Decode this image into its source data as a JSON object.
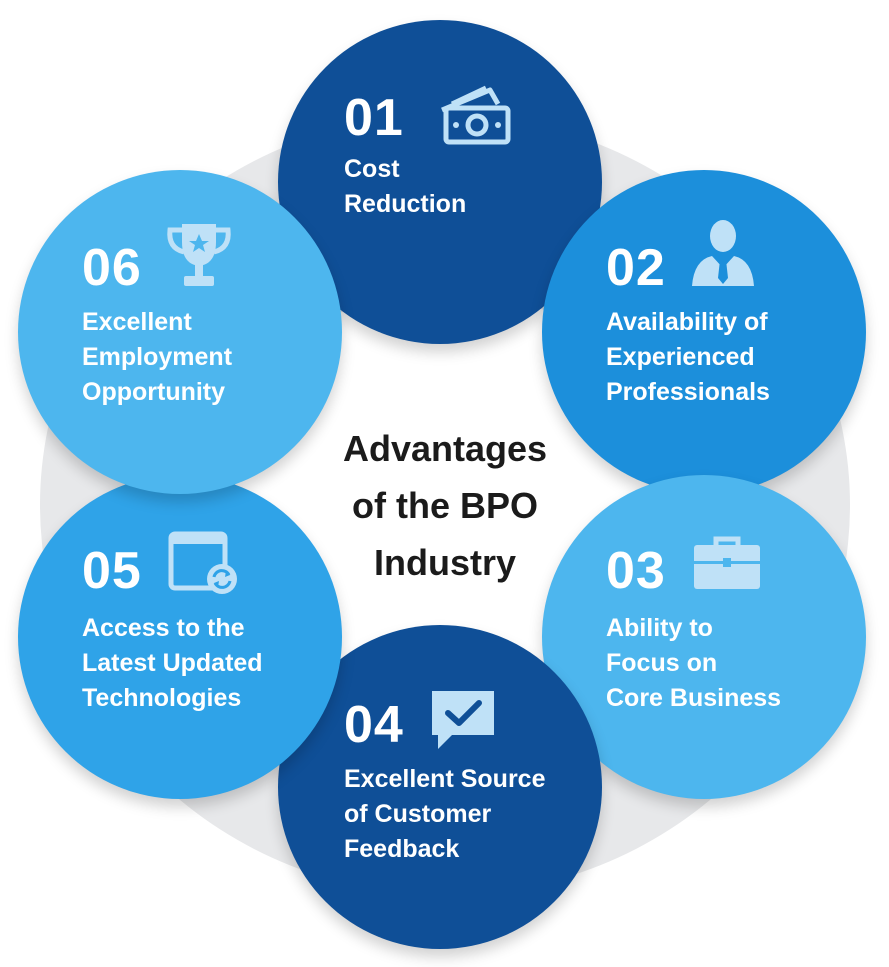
{
  "title_lines": [
    "Advantages",
    "of the BPO",
    "Industry"
  ],
  "colors": {
    "dark": "#0f4f97",
    "medium": "#1c8fdb",
    "light": "#2fa3e8",
    "lightest": "#4db6ee",
    "ring": "#e7e8ea",
    "icon": "#bfe1f7",
    "title": "#1b1b1b"
  },
  "items": [
    {
      "number": "01",
      "lines": [
        "Cost",
        "Reduction"
      ],
      "icon": "cash-icon"
    },
    {
      "number": "02",
      "lines": [
        "Availability of",
        "Experienced",
        "Professionals"
      ],
      "icon": "businessman-icon"
    },
    {
      "number": "03",
      "lines": [
        "Ability to",
        "Focus on",
        "Core Business"
      ],
      "icon": "briefcase-icon"
    },
    {
      "number": "04",
      "lines": [
        "Excellent Source",
        "of Customer",
        "Feedback"
      ],
      "icon": "chat-check-icon"
    },
    {
      "number": "05",
      "lines": [
        "Access to the",
        "Latest Updated",
        "Technologies"
      ],
      "icon": "refresh-window-icon"
    },
    {
      "number": "06",
      "lines": [
        "Excellent",
        "Employment",
        "Opportunity"
      ],
      "icon": "trophy-icon"
    }
  ]
}
